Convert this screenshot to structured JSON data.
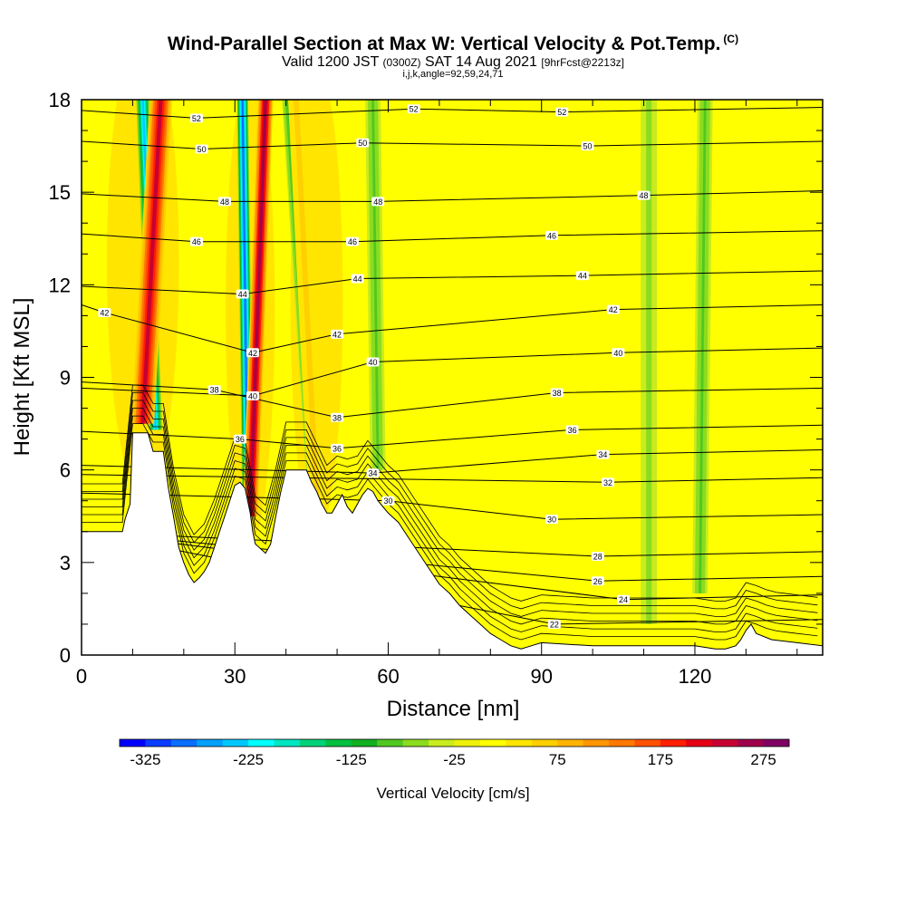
{
  "title": {
    "main": "Wind-Parallel Section at Max W: Vertical Velocity & Pot.Temp.",
    "copyright": "(C)",
    "valid_prefix": "Valid 1200 JST",
    "valid_utc": "(0300Z)",
    "valid_date": "SAT 14 Aug 2021",
    "forecast": "[9hrFcst@2213z]",
    "section_params": "i,j,k,angle=92,59,24,71"
  },
  "chart_data": {
    "type": "heatmap",
    "xlabel": "Distance [nm]",
    "ylabel": "Height [Kft MSL]",
    "xlim": [
      0,
      145
    ],
    "ylim": [
      0,
      18
    ],
    "x_ticks": [
      0,
      30,
      60,
      90,
      120
    ],
    "y_ticks": [
      0,
      3,
      6,
      9,
      12,
      15,
      18
    ],
    "terrain": {
      "x": [
        0,
        8,
        8.5,
        9.5,
        10,
        13,
        14,
        16,
        17,
        18,
        19,
        20,
        21,
        22,
        23,
        24,
        25,
        26,
        27,
        28,
        29,
        30,
        31,
        32,
        33,
        33.5,
        34,
        36,
        37,
        38,
        39,
        40,
        44,
        45,
        46,
        47,
        48,
        49,
        50,
        51,
        52,
        53,
        54,
        55,
        56,
        57,
        58,
        59,
        60,
        62,
        64,
        66,
        68,
        70,
        72,
        74,
        76,
        78,
        80,
        82,
        84,
        86,
        88,
        90,
        100,
        110,
        120,
        124,
        126,
        128,
        129,
        130,
        131,
        132,
        135,
        140,
        145
      ],
      "y": [
        4.0,
        4.0,
        4.4,
        4.9,
        7.2,
        7.2,
        6.6,
        6.6,
        5.4,
        4.5,
        3.5,
        3.0,
        2.6,
        2.35,
        2.5,
        2.7,
        3.0,
        3.5,
        4.0,
        4.5,
        5.0,
        5.5,
        5.6,
        5.4,
        4.6,
        4.0,
        3.6,
        3.3,
        3.6,
        4.5,
        5.3,
        6.0,
        6.0,
        5.6,
        5.3,
        4.9,
        4.6,
        4.6,
        4.9,
        5.2,
        4.8,
        4.6,
        4.9,
        5.2,
        5.4,
        5.3,
        5.0,
        4.8,
        4.6,
        4.3,
        3.8,
        3.3,
        2.8,
        2.3,
        2.0,
        1.6,
        1.3,
        1.0,
        0.7,
        0.5,
        0.3,
        0.2,
        0.3,
        0.4,
        0.3,
        0.3,
        0.3,
        0.2,
        0.2,
        0.3,
        0.5,
        0.8,
        1.0,
        0.7,
        0.5,
        0.4,
        0.3
      ]
    },
    "updrafts": [
      {
        "name": "plume-1",
        "x_top": 15.5,
        "x_base": 12.0,
        "y_base": 7.5,
        "half_width": 2.2,
        "peak_cm_s": 225
      },
      {
        "name": "plume-2",
        "x_top": 36.0,
        "x_base": 33.0,
        "y_base": 4.5,
        "half_width": 1.5,
        "peak_cm_s": 260
      },
      {
        "name": "plume-3",
        "x_top": 42.0,
        "x_base": 46.0,
        "y_base": 5.0,
        "half_width": 1.6,
        "peak_cm_s": 55
      }
    ],
    "downdrafts": [
      {
        "name": "plume-1-down",
        "x_top": 12.0,
        "x_base": 14.5,
        "y_base": 7.3,
        "half_width": 1.3,
        "peak_cm_s": -250
      },
      {
        "name": "plume-2-down",
        "x_top": 31.5,
        "x_base": 32.5,
        "y_base": 5.2,
        "half_width": 1.1,
        "peak_cm_s": -290
      },
      {
        "name": "plume-3-down",
        "x_top": 40.5,
        "x_base": 45.5,
        "y_base": 5.0,
        "half_width": 1.3,
        "peak_cm_s": -110
      },
      {
        "name": "plume-4-down",
        "x_top": 57.0,
        "x_base": 58.0,
        "y_base": 6.0,
        "half_width": 1.5,
        "peak_cm_s": -80
      },
      {
        "name": "plume-5-down",
        "x_top": 111.0,
        "x_base": 111.0,
        "y_base": 1.0,
        "half_width": 1.6,
        "peak_cm_s": -60
      },
      {
        "name": "plume-6-down",
        "x_top": 122.0,
        "x_base": 121.0,
        "y_base": 2.0,
        "half_width": 1.5,
        "peak_cm_s": -80
      }
    ],
    "theta_isotherms": [
      {
        "value": 22,
        "x": 92.5,
        "y": 1.0,
        "label_text": "22"
      },
      {
        "value": 24,
        "x": 106,
        "y": 1.8,
        "label_text": "24"
      },
      {
        "value": 26,
        "x": 101,
        "y": 2.4,
        "label_text": "26"
      },
      {
        "value": 28,
        "x": 101,
        "y": 3.2,
        "label_text": "28"
      },
      {
        "value": 30,
        "x": 92,
        "y": 4.4,
        "label_text": "30"
      },
      {
        "value": 30,
        "x": 60,
        "y": 5.0,
        "label_text": "30"
      },
      {
        "value": 32,
        "x": 103,
        "y": 5.6,
        "label_text": "32"
      },
      {
        "value": 34,
        "x": 57,
        "y": 5.9,
        "label_text": "34"
      },
      {
        "value": 34,
        "x": 102,
        "y": 6.5,
        "label_text": "34"
      },
      {
        "value": 36,
        "x": 96,
        "y": 7.3,
        "label_text": "36"
      },
      {
        "value": 36,
        "x": 50,
        "y": 6.7,
        "label_text": "36"
      },
      {
        "value": 36,
        "x": 31,
        "y": 7.0,
        "label_text": "36"
      },
      {
        "value": 38,
        "x": 50,
        "y": 7.7,
        "label_text": "38"
      },
      {
        "value": 38,
        "x": 93,
        "y": 8.5,
        "label_text": "38"
      },
      {
        "value": 38,
        "x": 26,
        "y": 8.6,
        "label_text": "38"
      },
      {
        "value": 40,
        "x": 33.5,
        "y": 8.4,
        "label_text": "40"
      },
      {
        "value": 40,
        "x": 57,
        "y": 9.5,
        "label_text": "40"
      },
      {
        "value": 40,
        "x": 105,
        "y": 9.8,
        "label_text": "40"
      },
      {
        "value": 42,
        "x": 33.5,
        "y": 9.8,
        "label_text": "42"
      },
      {
        "value": 42,
        "x": 50,
        "y": 10.4,
        "label_text": "42"
      },
      {
        "value": 42,
        "x": 104,
        "y": 11.2,
        "label_text": "42"
      },
      {
        "value": 42,
        "x": 4.5,
        "y": 11.1,
        "label_text": "42"
      },
      {
        "value": 44,
        "x": 31.5,
        "y": 11.7,
        "label_text": "44"
      },
      {
        "value": 44,
        "x": 54,
        "y": 12.2,
        "label_text": "44"
      },
      {
        "value": 44,
        "x": 98,
        "y": 12.3,
        "label_text": "44"
      },
      {
        "value": 46,
        "x": 22.5,
        "y": 13.4,
        "label_text": "46"
      },
      {
        "value": 46,
        "x": 53,
        "y": 13.4,
        "label_text": "46"
      },
      {
        "value": 46,
        "x": 92,
        "y": 13.6,
        "label_text": "46"
      },
      {
        "value": 48,
        "x": 28,
        "y": 14.7,
        "label_text": "48"
      },
      {
        "value": 48,
        "x": 58,
        "y": 14.7,
        "label_text": "48"
      },
      {
        "value": 48,
        "x": 110,
        "y": 14.9,
        "label_text": "48"
      },
      {
        "value": 50,
        "x": 23.5,
        "y": 16.4,
        "label_text": "50"
      },
      {
        "value": 50,
        "x": 55,
        "y": 16.6,
        "label_text": "50"
      },
      {
        "value": 50,
        "x": 99,
        "y": 16.5,
        "label_text": "50"
      },
      {
        "value": 52,
        "x": 22.5,
        "y": 17.4,
        "label_text": "52"
      },
      {
        "value": 52,
        "x": 65,
        "y": 17.7,
        "label_text": "52"
      },
      {
        "value": 52,
        "x": 94,
        "y": 17.6,
        "label_text": "52"
      }
    ],
    "colorbar": {
      "label": "Vertical Velocity [cm/s]",
      "min": -350,
      "max": 300,
      "step": 25,
      "tick_labels": [
        "-325",
        "-225",
        "-125",
        "-25",
        "75",
        "175",
        "275"
      ],
      "tick_values": [
        -325,
        -225,
        -125,
        -25,
        75,
        175,
        275
      ],
      "colors": [
        "#0000ff",
        "#0a3cff",
        "#0a6eff",
        "#00a0ff",
        "#00c8ff",
        "#00ffff",
        "#00e6c0",
        "#00d278",
        "#00c040",
        "#10b020",
        "#50c820",
        "#8cdc1e",
        "#c8ec1e",
        "#eef00a",
        "#ffff00",
        "#ffe600",
        "#ffd000",
        "#ffb400",
        "#ff9600",
        "#ff7800",
        "#ff5000",
        "#ff1e00",
        "#e60014",
        "#c80032",
        "#a0004b",
        "#800064"
      ]
    }
  }
}
